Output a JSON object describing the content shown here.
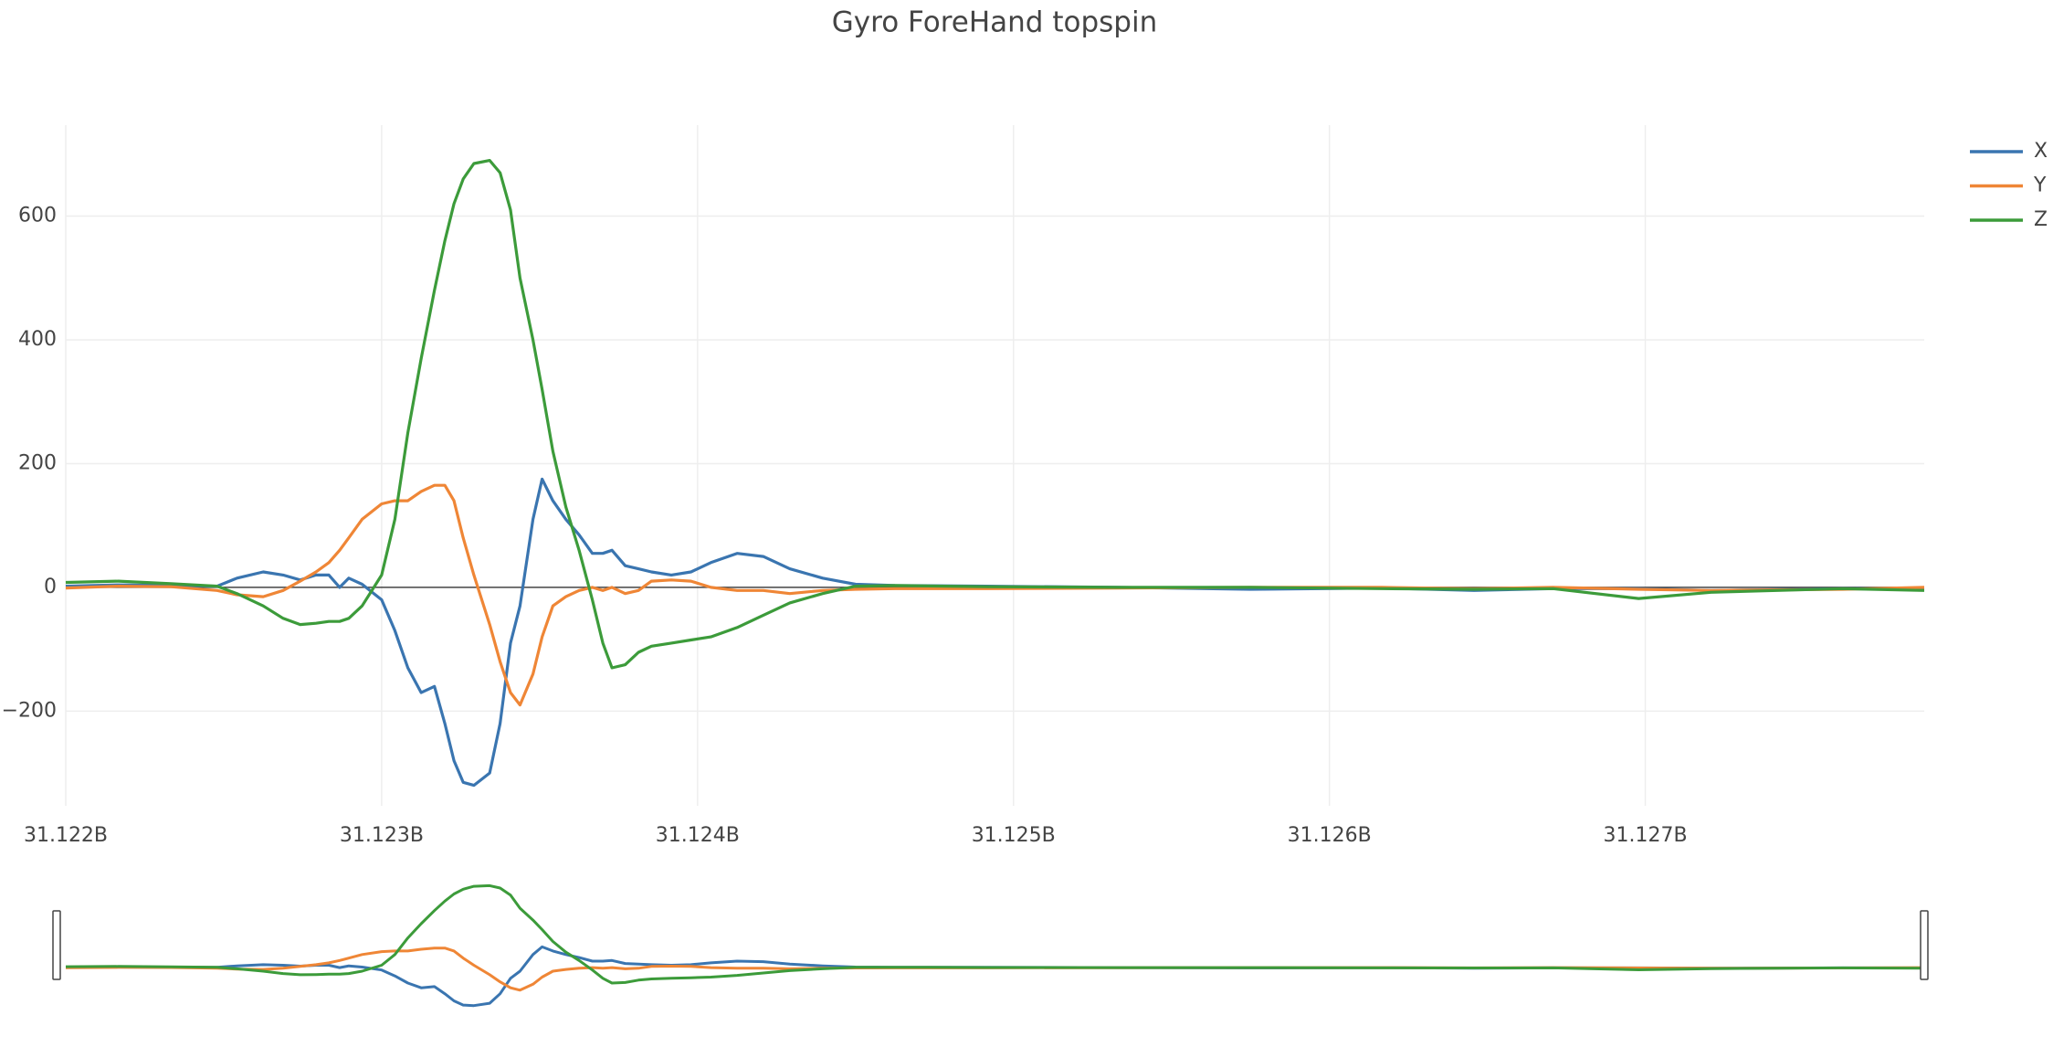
{
  "chart_data": {
    "type": "line",
    "title": "Gyro ForeHand topspin",
    "x": [
      31122000000,
      31122167000,
      31122333000,
      31122479000,
      31122542000,
      31122625000,
      31122688000,
      31122742000,
      31122792000,
      31122833000,
      31122867000,
      31122896000,
      31122938000,
      31123000000,
      31123042000,
      31123083000,
      31123125000,
      31123167000,
      31123200000,
      31123229000,
      31123258000,
      31123292000,
      31123342000,
      31123375000,
      31123408000,
      31123438000,
      31123479000,
      31123508000,
      31123542000,
      31123583000,
      31123625000,
      31123667000,
      31123700000,
      31123729000,
      31123771000,
      31123813000,
      31123854000,
      31123917000,
      31123979000,
      31124042000,
      31124125000,
      31124208000,
      31124292000,
      31124396000,
      31124500000,
      31124625000,
      31124917000,
      31125333000,
      31125750000,
      31126167000,
      31126458000,
      31126708000,
      31126979000,
      31127208000,
      31127625000,
      31127883000
    ],
    "series": [
      {
        "name": "X",
        "color": "#3a75b0",
        "values": [
          2,
          4,
          3,
          2,
          15,
          25,
          20,
          12,
          20,
          20,
          0,
          15,
          5,
          -20,
          -70,
          -130,
          -170,
          -160,
          -220,
          -280,
          -315,
          -320,
          -300,
          -220,
          -90,
          -30,
          110,
          175,
          140,
          110,
          85,
          55,
          55,
          60,
          35,
          30,
          25,
          20,
          25,
          40,
          55,
          50,
          30,
          15,
          5,
          3,
          2,
          0,
          -3,
          -1,
          -5,
          -2,
          -2,
          -5,
          -2,
          -3
        ]
      },
      {
        "name": "Y",
        "color": "#ef8636",
        "values": [
          -1,
          2,
          1,
          -5,
          -12,
          -15,
          -5,
          10,
          25,
          40,
          60,
          80,
          110,
          135,
          140,
          140,
          155,
          165,
          165,
          140,
          80,
          20,
          -60,
          -120,
          -170,
          -190,
          -140,
          -80,
          -30,
          -15,
          -5,
          0,
          -5,
          0,
          -10,
          -5,
          10,
          12,
          10,
          0,
          -5,
          -5,
          -10,
          -5,
          -3,
          -2,
          -2,
          -1,
          0,
          0,
          -2,
          0,
          -3,
          -5,
          -3,
          0
        ]
      },
      {
        "name": "Z",
        "color": "#3c9b3a",
        "values": [
          8,
          10,
          6,
          2,
          -10,
          -30,
          -50,
          -60,
          -58,
          -55,
          -55,
          -50,
          -30,
          20,
          110,
          250,
          370,
          480,
          560,
          620,
          660,
          685,
          690,
          670,
          610,
          500,
          400,
          320,
          220,
          130,
          60,
          -20,
          -90,
          -130,
          -125,
          -105,
          -95,
          -90,
          -85,
          -80,
          -65,
          -45,
          -25,
          -10,
          2,
          3,
          1,
          0,
          0,
          -2,
          -3,
          -2,
          -18,
          -8,
          -2,
          -5
        ]
      }
    ],
    "xlim": [
      31122000000,
      31127883000
    ],
    "xticks": [
      {
        "value": 31122000000,
        "label": "31.122B"
      },
      {
        "value": 31123000000,
        "label": "31.123B"
      },
      {
        "value": 31124000000,
        "label": "31.124B"
      },
      {
        "value": 31125000000,
        "label": "31.125B"
      },
      {
        "value": 31126000000,
        "label": "31.126B"
      },
      {
        "value": 31127000000,
        "label": "31.127B"
      }
    ],
    "ylim": [
      -353,
      747
    ],
    "yticks": [
      {
        "value": -200,
        "label": "−200"
      },
      0,
      200,
      400,
      600
    ],
    "grid": true,
    "legend": "top-right",
    "range_slider": true
  }
}
